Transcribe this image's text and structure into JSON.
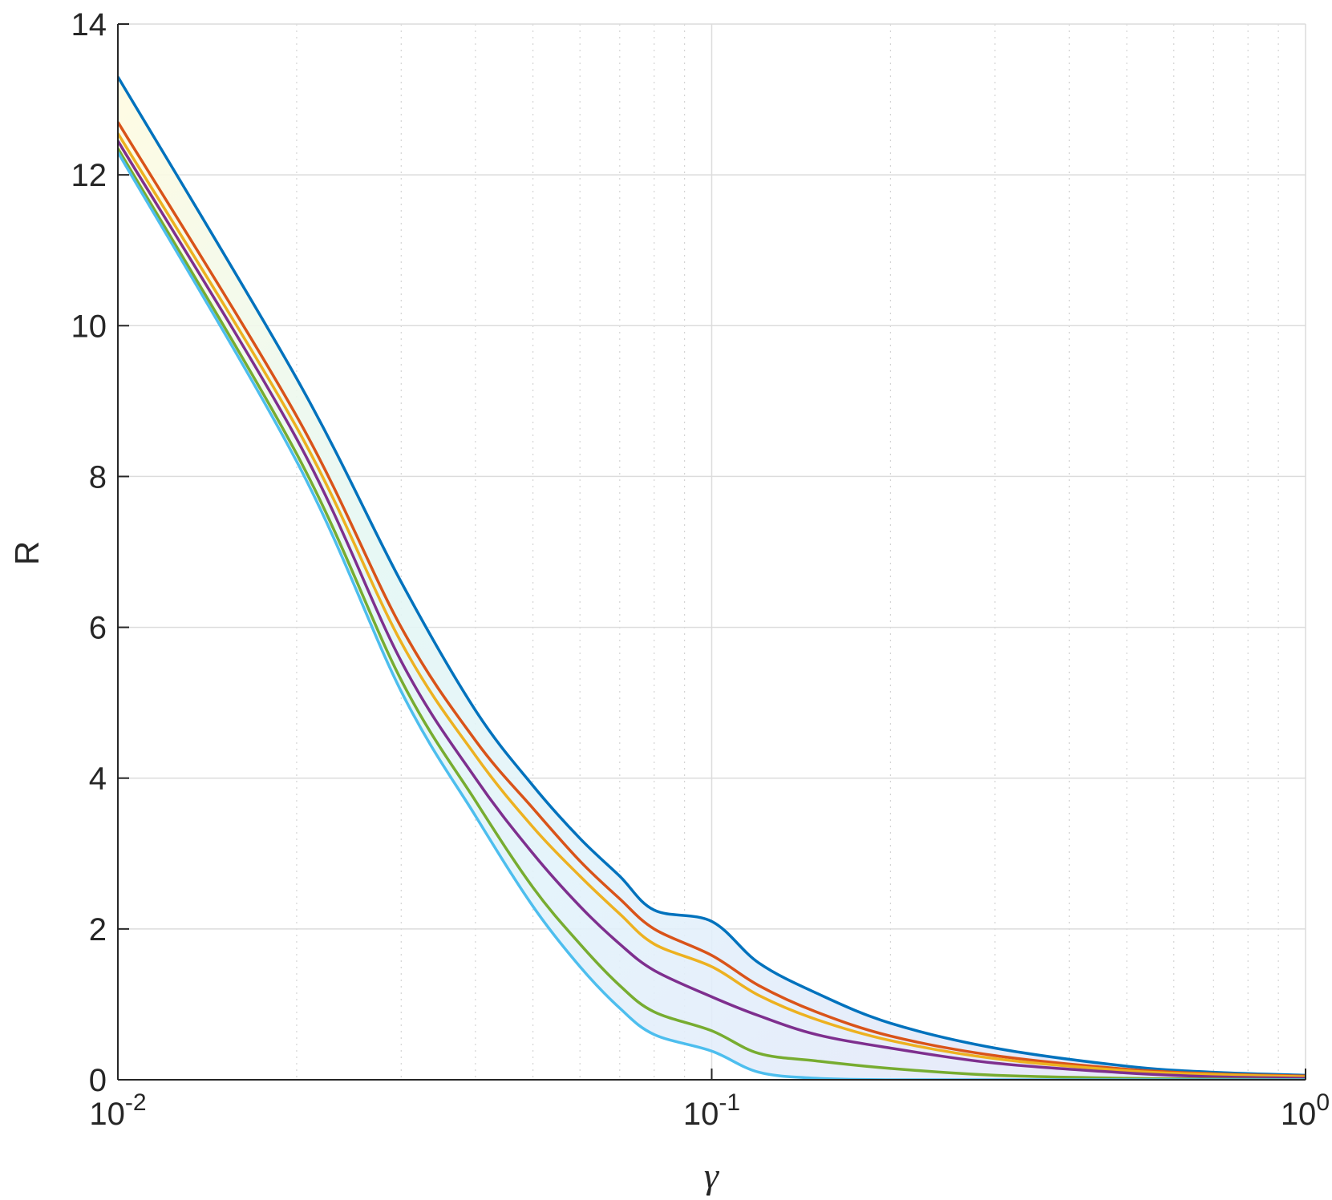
{
  "chart_data": {
    "type": "line",
    "title": "",
    "xlabel": "γ",
    "ylabel": "R",
    "xscale": "log",
    "xlim": [
      0.01,
      1
    ],
    "ylim": [
      0,
      14
    ],
    "grid": true,
    "minor_grid_x": true,
    "x_ticks": [
      {
        "value": 0.01,
        "base": "10",
        "exp": "-2"
      },
      {
        "value": 0.1,
        "base": "10",
        "exp": "-1"
      },
      {
        "value": 1,
        "base": "10",
        "exp": "0"
      }
    ],
    "y_ticks": [
      {
        "value": 0,
        "label": "0"
      },
      {
        "value": 2,
        "label": "2"
      },
      {
        "value": 4,
        "label": "4"
      },
      {
        "value": 6,
        "label": "6"
      },
      {
        "value": 8,
        "label": "8"
      },
      {
        "value": 10,
        "label": "10"
      },
      {
        "value": 12,
        "label": "12"
      },
      {
        "value": 14,
        "label": "14"
      }
    ],
    "x": [
      0.01,
      0.02,
      0.03,
      0.04,
      0.05,
      0.06,
      0.07,
      0.08,
      0.1,
      0.12,
      0.15,
      0.2,
      0.3,
      0.5,
      0.7,
      1.0
    ],
    "series": [
      {
        "color": "#0072BD",
        "values": [
          13.3,
          9.3,
          6.6,
          4.9,
          3.9,
          3.2,
          2.7,
          2.25,
          2.1,
          1.55,
          1.15,
          0.75,
          0.42,
          0.18,
          0.1,
          0.06
        ]
      },
      {
        "color": "#D95319",
        "values": [
          12.7,
          8.8,
          6.0,
          4.5,
          3.6,
          2.9,
          2.4,
          2.0,
          1.65,
          1.25,
          0.9,
          0.58,
          0.32,
          0.14,
          0.08,
          0.05
        ]
      },
      {
        "color": "#EDB120",
        "values": [
          12.55,
          8.65,
          5.8,
          4.3,
          3.35,
          2.7,
          2.2,
          1.8,
          1.5,
          1.12,
          0.8,
          0.52,
          0.28,
          0.12,
          0.07,
          0.04
        ]
      },
      {
        "color": "#7E2F8E",
        "values": [
          12.45,
          8.5,
          5.55,
          4.0,
          3.0,
          2.3,
          1.8,
          1.45,
          1.1,
          0.85,
          0.6,
          0.42,
          0.22,
          0.09,
          0.04,
          0.02
        ]
      },
      {
        "color": "#77AC30",
        "values": [
          12.35,
          8.3,
          5.3,
          3.7,
          2.55,
          1.8,
          1.25,
          0.9,
          0.65,
          0.35,
          0.25,
          0.15,
          0.06,
          0.02,
          0.01,
          0.0
        ]
      },
      {
        "color": "#4DBEEE",
        "values": [
          12.3,
          8.2,
          5.15,
          3.5,
          2.3,
          1.5,
          0.95,
          0.6,
          0.38,
          0.1,
          0.02,
          0.0,
          0.0,
          0.0,
          0.0,
          0.0
        ]
      }
    ],
    "band": {
      "upper_series": 0,
      "lower_series": 5,
      "gradient_colors": [
        "#fffbe0",
        "#e4f7f4",
        "#e2f2fb",
        "#e6e4f9"
      ]
    }
  }
}
